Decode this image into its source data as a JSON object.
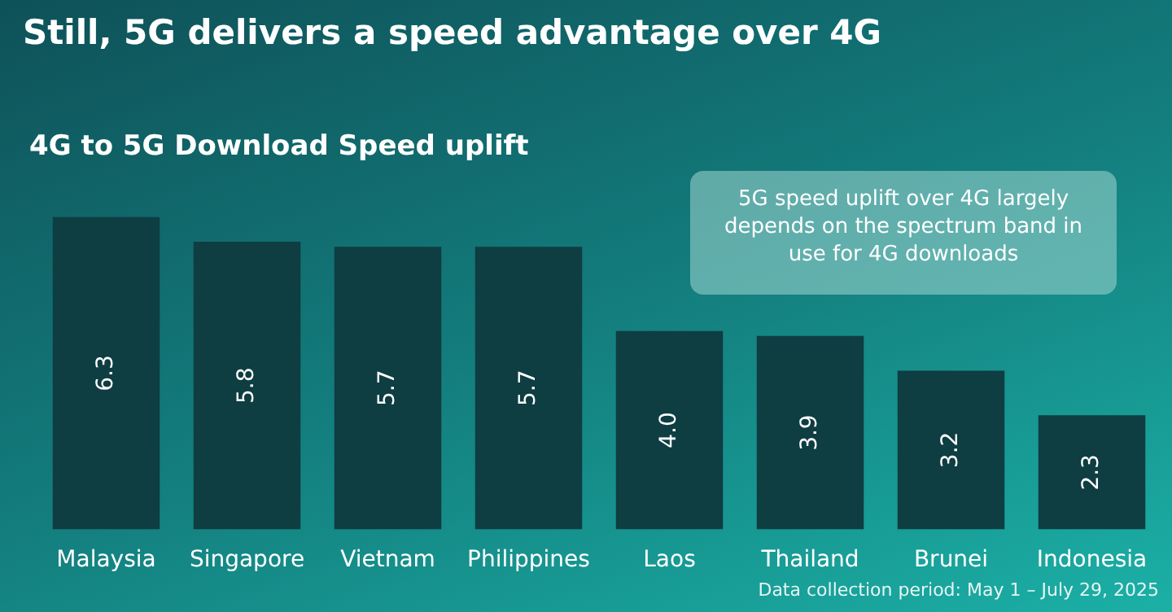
{
  "chart_data": {
    "type": "bar",
    "title": "Still, 5G delivers a speed advantage over 4G",
    "subtitle": "4G to 5G Download Speed uplift",
    "categories": [
      "Malaysia",
      "Singapore",
      "Vietnam",
      "Philippines",
      "Laos",
      "Thailand",
      "Brunei",
      "Indonesia"
    ],
    "values": [
      6.3,
      5.8,
      5.7,
      5.7,
      4.0,
      3.9,
      3.2,
      2.3
    ],
    "value_labels": [
      "6.3",
      "5.8",
      "5.7",
      "5.7",
      "4.0",
      "3.9",
      "3.2",
      "2.3"
    ],
    "color": "#0e3d42",
    "grid": false,
    "legend": false,
    "tick_labels": "x",
    "annotations": [
      "5G speed uplift over 4G largely depends on the spectrum band in use for 4G downloads",
      "Data collection period: May 1 – July 29, 2025"
    ]
  }
}
